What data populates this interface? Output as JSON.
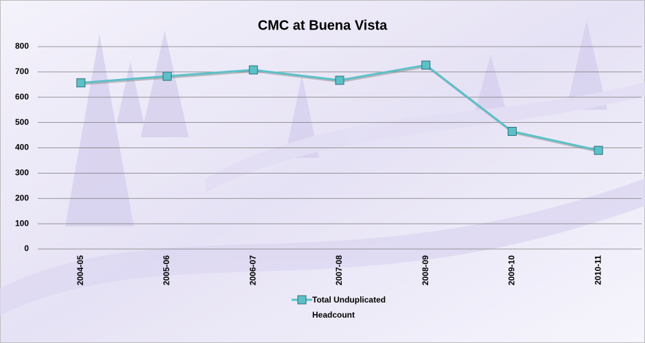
{
  "chart_data": {
    "type": "line",
    "title": "CMC at Buena Vista",
    "categories": [
      "2004-05",
      "2005-06",
      "2006-07",
      "2007-08",
      "2008-09",
      "2009-10",
      "2010-11"
    ],
    "series": [
      {
        "name": "Total Unduplicated Headcount",
        "color": "#5cc0c8",
        "values": [
          657,
          683,
          708,
          667,
          727,
          465,
          390
        ]
      }
    ],
    "ylim": [
      0,
      800
    ],
    "yticks": [
      0,
      100,
      200,
      300,
      400,
      500,
      600,
      700,
      800
    ],
    "grid": true,
    "legend": "bottom"
  }
}
